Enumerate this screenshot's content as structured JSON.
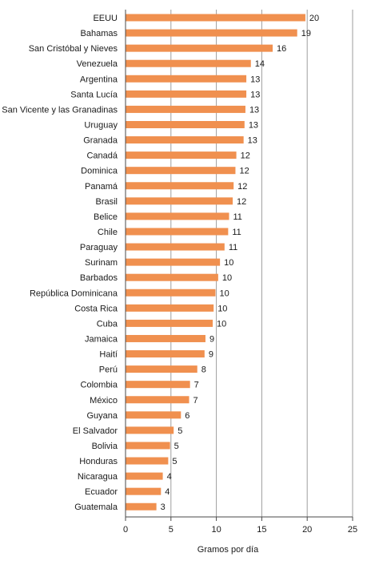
{
  "chart_data": {
    "type": "bar",
    "orientation": "horizontal",
    "title": "",
    "xlabel": "Gramos por día",
    "ylabel": "",
    "xlim": [
      0,
      25
    ],
    "xticks": [
      0,
      5,
      10,
      15,
      20,
      25
    ],
    "grid": "vertical",
    "bar_color": "#f0904f",
    "categories": [
      "EEUU",
      "Bahamas",
      "San Cristóbal y Nieves",
      "Venezuela",
      "Argentina",
      "Santa Lucía",
      "San Vicente y las Granadinas",
      "Uruguay",
      "Granada",
      "Canadá",
      "Dominica",
      "Panamá",
      "Brasil",
      "Belice",
      "Chile",
      "Paraguay",
      "Surinam",
      "Barbados",
      "República Dominicana",
      "Costa Rica",
      "Cuba",
      "Jamaica",
      "Haití",
      "Perú",
      "Colombia",
      "México",
      "Guyana",
      "El Salvador",
      "Bolivia",
      "Honduras",
      "Nicaragua",
      "Ecuador",
      "Guatemala"
    ],
    "values": [
      19.8,
      18.9,
      16.2,
      13.8,
      13.3,
      13.3,
      13.2,
      13.1,
      13.0,
      12.2,
      12.1,
      11.9,
      11.8,
      11.4,
      11.3,
      10.9,
      10.4,
      10.2,
      9.9,
      9.7,
      9.6,
      8.8,
      8.7,
      7.9,
      7.1,
      7.0,
      6.1,
      5.3,
      4.9,
      4.7,
      4.1,
      3.9,
      3.4
    ],
    "value_labels": [
      "20",
      "19",
      "16",
      "14",
      "13",
      "13",
      "13",
      "13",
      "13",
      "12",
      "12",
      "12",
      "12",
      "11",
      "11",
      "11",
      "10",
      "10",
      "10",
      "10",
      "10",
      "9",
      "9",
      "8",
      "7",
      "7",
      "6",
      "5",
      "5",
      "5",
      "4",
      "4",
      "3"
    ],
    "tick_labels": [
      "0",
      "5",
      "10",
      "15",
      "20",
      "25"
    ]
  }
}
